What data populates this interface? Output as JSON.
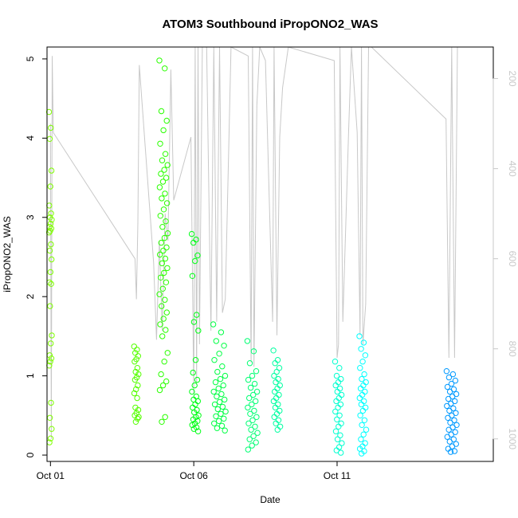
{
  "chart_data": {
    "type": "scatter",
    "title": "ATOM3 Southbound iPropONO2_WAS",
    "xlabel": "Date",
    "ylabel": "iPropONO2_WAS",
    "xlim": [
      0.88,
      16.45
    ],
    "ylim": [
      -0.08,
      5.15
    ],
    "x_ticks": [
      {
        "value": 1,
        "label": "Oct 01"
      },
      {
        "value": 6,
        "label": "Oct 06"
      },
      {
        "value": 11,
        "label": "Oct 11"
      }
    ],
    "y_ticks": [
      0,
      1,
      2,
      3,
      4,
      5
    ],
    "right_axis": {
      "label": "",
      "ticks": [
        200,
        400,
        600,
        800,
        1000
      ],
      "lim": [
        130,
        1050
      ],
      "reversed": true,
      "color": "#c8c8c8"
    },
    "series": [
      {
        "cluster": 1,
        "x_center": 1.0,
        "x_spread": 0.05,
        "color": "#7fff00",
        "values": [
          4.33,
          4.13,
          3.99,
          3.59,
          3.39,
          3.15,
          3.05,
          3.0,
          2.97,
          2.92,
          2.88,
          2.86,
          2.83,
          2.81,
          2.66,
          2.58,
          2.47,
          2.31,
          2.18,
          2.16,
          1.88,
          1.51,
          1.41,
          1.26,
          1.22,
          1.18,
          1.13,
          0.66,
          0.47,
          0.33,
          0.21,
          0.16
        ]
      },
      {
        "cluster": 2,
        "x_center": 4.0,
        "x_spread": 0.08,
        "color": "#55ff00",
        "values": [
          1.37,
          1.33,
          1.29,
          1.25,
          1.21,
          1.18,
          1.1,
          1.05,
          1.02,
          0.98,
          0.95,
          0.88,
          0.83,
          0.78,
          0.72,
          0.6,
          0.57,
          0.53,
          0.5,
          0.46,
          0.42,
          0.48
        ]
      },
      {
        "cluster": 3,
        "x_center": 4.95,
        "x_spread": 0.15,
        "color": "#2aff00",
        "values": [
          4.98,
          4.88,
          4.34,
          4.22,
          4.1,
          3.93,
          3.8,
          3.72,
          3.66,
          3.6,
          3.55,
          3.5,
          3.45,
          3.38,
          3.3,
          3.24,
          3.18,
          3.1,
          3.02,
          2.95,
          2.88,
          2.8,
          2.74,
          2.68,
          2.62,
          2.58,
          2.53,
          2.48,
          2.42,
          2.36,
          2.3,
          2.24,
          2.18,
          2.1,
          2.03,
          1.96,
          1.88,
          1.8,
          1.72,
          1.65,
          1.58,
          1.5,
          1.29,
          1.18,
          1.02,
          0.93,
          0.88,
          0.82,
          0.48,
          0.42
        ]
      },
      {
        "cluster": 4,
        "x_center": 6.05,
        "x_spread": 0.12,
        "color": "#00ff16",
        "values": [
          2.79,
          2.72,
          2.68,
          2.52,
          2.45,
          2.26,
          1.77,
          1.68,
          1.57,
          1.2,
          1.04,
          0.95,
          0.88,
          0.8,
          0.74,
          0.7,
          0.68,
          0.64,
          0.6,
          0.57,
          0.54,
          0.5,
          0.48,
          0.45,
          0.43,
          0.4,
          0.38,
          0.35,
          0.33,
          0.3
        ]
      },
      {
        "cluster": 5,
        "x_center": 6.9,
        "x_spread": 0.22,
        "color": "#00ff44",
        "values": [
          1.65,
          1.55,
          1.44,
          1.38,
          1.28,
          1.2,
          1.12,
          1.05,
          1.0,
          0.96,
          0.92,
          0.88,
          0.84,
          0.8,
          0.77,
          0.74,
          0.7,
          0.67,
          0.64,
          0.61,
          0.58,
          0.55,
          0.52,
          0.49,
          0.46,
          0.43,
          0.4,
          0.37,
          0.34,
          0.31
        ]
      },
      {
        "cluster": 6,
        "x_center": 8.05,
        "x_spread": 0.18,
        "color": "#00ff73",
        "values": [
          1.44,
          1.31,
          1.16,
          1.06,
          1.0,
          0.95,
          0.9,
          0.85,
          0.8,
          0.76,
          0.72,
          0.68,
          0.64,
          0.6,
          0.56,
          0.52,
          0.48,
          0.44,
          0.4,
          0.36,
          0.32,
          0.28,
          0.24,
          0.2,
          0.16,
          0.12,
          0.07
        ]
      },
      {
        "cluster": 7,
        "x_center": 8.9,
        "x_spread": 0.12,
        "color": "#00ffa1",
        "values": [
          1.32,
          1.2,
          1.16,
          1.1,
          1.05,
          1.0,
          0.96,
          0.92,
          0.88,
          0.84,
          0.8,
          0.76,
          0.72,
          0.68,
          0.64,
          0.6,
          0.56,
          0.52,
          0.48,
          0.44,
          0.4,
          0.36,
          0.32
        ]
      },
      {
        "cluster": 8,
        "x_center": 11.05,
        "x_spread": 0.12,
        "color": "#00ffd0",
        "values": [
          1.18,
          1.1,
          1.0,
          0.96,
          0.92,
          0.88,
          0.84,
          0.8,
          0.76,
          0.72,
          0.68,
          0.64,
          0.6,
          0.55,
          0.5,
          0.45,
          0.4,
          0.36,
          0.3,
          0.25,
          0.2,
          0.15,
          0.1,
          0.06,
          0.03
        ]
      },
      {
        "cluster": 9,
        "x_center": 11.9,
        "x_spread": 0.12,
        "color": "#00ffff",
        "values": [
          1.5,
          1.42,
          1.34,
          1.26,
          1.18,
          1.1,
          1.02,
          0.96,
          0.92,
          0.88,
          0.84,
          0.8,
          0.76,
          0.72,
          0.68,
          0.64,
          0.6,
          0.56,
          0.5,
          0.44,
          0.38,
          0.32,
          0.26,
          0.2,
          0.15,
          0.11,
          0.08,
          0.05,
          0.02
        ]
      },
      {
        "cluster": 10,
        "x_center": 15.0,
        "x_spread": 0.18,
        "color": "#0099ff",
        "values": [
          1.06,
          1.02,
          0.98,
          0.94,
          0.9,
          0.86,
          0.83,
          0.8,
          0.77,
          0.74,
          0.71,
          0.68,
          0.65,
          0.62,
          0.59,
          0.56,
          0.53,
          0.5,
          0.47,
          0.44,
          0.41,
          0.38,
          0.35,
          0.32,
          0.29,
          0.26,
          0.23,
          0.2,
          0.17,
          0.14,
          0.11,
          0.08,
          0.05,
          0.04
        ]
      }
    ],
    "altitude_profile": [
      [
        1.0,
        300
      ],
      [
        1.03,
        1000
      ],
      [
        1.06,
        150
      ],
      [
        1.1,
        320
      ],
      [
        3.95,
        600
      ],
      [
        4.0,
        690
      ],
      [
        4.05,
        520
      ],
      [
        4.1,
        170
      ],
      [
        4.6,
        610
      ],
      [
        4.7,
        780
      ],
      [
        4.8,
        560
      ],
      [
        4.9,
        760
      ],
      [
        5.0,
        500
      ],
      [
        5.1,
        560
      ],
      [
        5.2,
        180
      ],
      [
        5.3,
        470
      ],
      [
        5.9,
        330
      ],
      [
        6.0,
        900
      ],
      [
        6.05,
        130
      ],
      [
        6.1,
        880
      ],
      [
        6.15,
        130
      ],
      [
        6.2,
        790
      ],
      [
        6.3,
        130
      ],
      [
        6.45,
        130
      ],
      [
        6.6,
        760
      ],
      [
        6.7,
        130
      ],
      [
        6.8,
        740
      ],
      [
        6.9,
        130
      ],
      [
        7.0,
        720
      ],
      [
        7.1,
        690
      ],
      [
        7.3,
        130
      ],
      [
        7.9,
        150
      ],
      [
        8.0,
        830
      ],
      [
        8.05,
        130
      ],
      [
        8.1,
        840
      ],
      [
        8.2,
        260
      ],
      [
        8.3,
        130
      ],
      [
        8.5,
        160
      ],
      [
        8.75,
        740
      ],
      [
        8.8,
        130
      ],
      [
        8.9,
        770
      ],
      [
        9.0,
        330
      ],
      [
        9.1,
        220
      ],
      [
        9.3,
        130
      ],
      [
        10.9,
        160
      ],
      [
        11.0,
        820
      ],
      [
        11.05,
        790
      ],
      [
        11.1,
        130
      ],
      [
        11.2,
        740
      ],
      [
        11.4,
        320
      ],
      [
        11.5,
        130
      ],
      [
        11.7,
        320
      ],
      [
        11.8,
        770
      ],
      [
        11.85,
        130
      ],
      [
        11.9,
        790
      ],
      [
        12.0,
        700
      ],
      [
        12.1,
        130
      ],
      [
        12.2,
        130
      ],
      [
        14.8,
        290
      ],
      [
        14.9,
        820
      ],
      [
        15.0,
        130
      ],
      [
        15.1,
        820
      ],
      [
        15.2,
        130
      ]
    ]
  }
}
